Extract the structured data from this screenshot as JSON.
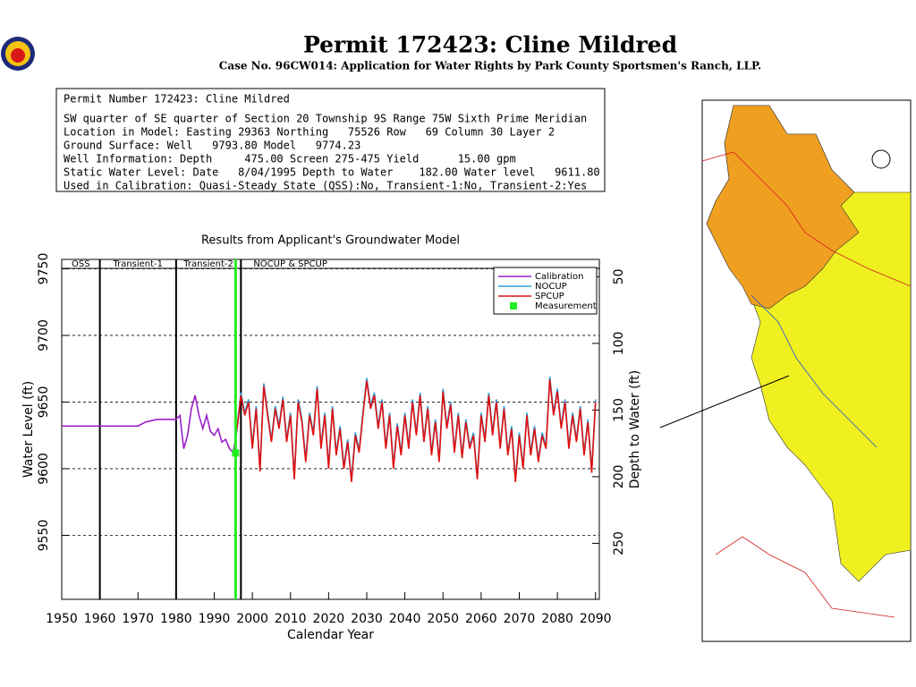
{
  "header": {
    "title": "Permit  172423:   Cline Mildred",
    "subtitle": "Case No. 96CW014: Application for Water Rights by Park County Sportsmen's Ranch, LLP."
  },
  "info": [
    "Permit Number 172423: Cline Mildred",
    "SW quarter of SE quarter of Section 20 Township 9S Range 75W Sixth Prime Meridian",
    "Location in Model: Easting 29363 Northing   75526 Row   69 Column 30 Layer 2",
    "Ground Surface: Well   9793.80 Model   9774.23",
    "Well Information: Depth     475.00 Screen 275-475 Yield      15.00 gpm",
    "Static Water Level: Date   8/04/1995 Depth to Water    182.00 Water level   9611.80",
    "Used in Calibration: Quasi-Steady State (QSS):No, Transient-1:No, Transient-2:Yes"
  ],
  "chart_data": {
    "type": "line",
    "title": "Results from Applicant's Groundwater Model",
    "xlabel": "Calendar Year",
    "ylabel": "Water Level (ft)",
    "y2label": "Depth to Water (ft)",
    "xlim": [
      1950,
      2091
    ],
    "xticks": [
      1950,
      1960,
      1970,
      1980,
      1990,
      2000,
      2010,
      2020,
      2030,
      2040,
      2050,
      2060,
      2070,
      2080,
      2090
    ],
    "ylim": [
      9502,
      9757
    ],
    "yticks": [
      9550,
      9600,
      9650,
      9700,
      9750
    ],
    "y2lim": [
      292,
      37
    ],
    "y2ticks": [
      50,
      100,
      150,
      200,
      250
    ],
    "grid": true,
    "legend": "upper right",
    "periods": [
      {
        "label": "OSS",
        "start": 1950
      },
      {
        "label": "Transient-1",
        "start": 1960
      },
      {
        "label": "Transient-2",
        "start": 1980
      },
      {
        "label": "NOCUP  &  SPCUP",
        "start": 1997
      }
    ],
    "series": [
      {
        "name": "Calibration",
        "color": "#9b1fc8",
        "x": [
          1950,
          1970,
          1972,
          1975,
          1980,
          1981,
          1982,
          1983,
          1984,
          1985,
          1986,
          1987,
          1988,
          1989,
          1990,
          1991,
          1992,
          1993,
          1994,
          1995,
          1996
        ],
        "values": [
          9632,
          9632,
          9635,
          9637,
          9637,
          9640,
          9615,
          9625,
          9645,
          9655,
          9640,
          9630,
          9640,
          9628,
          9625,
          9630,
          9620,
          9622,
          9615,
          9612,
          9630
        ]
      },
      {
        "name": "NOCUP",
        "color": "#2aa0e0",
        "x": [
          1996,
          1997,
          1998,
          1999,
          2000,
          2001,
          2002,
          2003,
          2004,
          2005,
          2006,
          2007,
          2008,
          2009,
          2010,
          2011,
          2012,
          2013,
          2014,
          2015,
          2016,
          2017,
          2018,
          2019,
          2020,
          2021,
          2022,
          2023,
          2024,
          2025,
          2026,
          2027,
          2028,
          2029,
          2030,
          2031,
          2032,
          2033,
          2034,
          2035,
          2036,
          2037,
          2038,
          2039,
          2040,
          2041,
          2042,
          2043,
          2044,
          2045,
          2046,
          2047,
          2048,
          2049,
          2050,
          2051,
          2052,
          2053,
          2054,
          2055,
          2056,
          2057,
          2058,
          2059,
          2060,
          2061,
          2062,
          2063,
          2064,
          2065,
          2066,
          2067,
          2068,
          2069,
          2070,
          2071,
          2072,
          2073,
          2074,
          2075,
          2076,
          2077,
          2078,
          2079,
          2080,
          2081,
          2082,
          2083,
          2084,
          2085,
          2086,
          2087,
          2088,
          2089,
          2090
        ],
        "values": [
          9632,
          9657,
          9642,
          9652,
          9617,
          9647,
          9600,
          9664,
          9642,
          9622,
          9647,
          9632,
          9654,
          9622,
          9642,
          9594,
          9652,
          9637,
          9607,
          9642,
          9627,
          9662,
          9617,
          9642,
          9602,
          9647,
          9612,
          9632,
          9602,
          9622,
          9592,
          9627,
          9614,
          9642,
          9668,
          9647,
          9657,
          9632,
          9652,
          9617,
          9642,
          9602,
          9634,
          9612,
          9642,
          9617,
          9652,
          9627,
          9657,
          9622,
          9647,
          9612,
          9637,
          9607,
          9660,
          9632,
          9650,
          9614,
          9642,
          9610,
          9637,
          9617,
          9627,
          9594,
          9642,
          9622,
          9657,
          9627,
          9652,
          9617,
          9647,
          9612,
          9632,
          9592,
          9627,
          9602,
          9642,
          9612,
          9632,
          9607,
          9627,
          9617,
          9669,
          9642,
          9660,
          9632,
          9652,
          9617,
          9642,
          9622,
          9647,
          9612,
          9637,
          9599,
          9652
        ]
      },
      {
        "name": "SPCUP",
        "color": "#e01010",
        "x": [
          1996,
          1997,
          1998,
          1999,
          2000,
          2001,
          2002,
          2003,
          2004,
          2005,
          2006,
          2007,
          2008,
          2009,
          2010,
          2011,
          2012,
          2013,
          2014,
          2015,
          2016,
          2017,
          2018,
          2019,
          2020,
          2021,
          2022,
          2023,
          2024,
          2025,
          2026,
          2027,
          2028,
          2029,
          2030,
          2031,
          2032,
          2033,
          2034,
          2035,
          2036,
          2037,
          2038,
          2039,
          2040,
          2041,
          2042,
          2043,
          2044,
          2045,
          2046,
          2047,
          2048,
          2049,
          2050,
          2051,
          2052,
          2053,
          2054,
          2055,
          2056,
          2057,
          2058,
          2059,
          2060,
          2061,
          2062,
          2063,
          2064,
          2065,
          2066,
          2067,
          2068,
          2069,
          2070,
          2071,
          2072,
          2073,
          2074,
          2075,
          2076,
          2077,
          2078,
          2079,
          2080,
          2081,
          2082,
          2083,
          2084,
          2085,
          2086,
          2087,
          2088,
          2089,
          2090
        ],
        "values": [
          9630,
          9655,
          9640,
          9650,
          9615,
          9645,
          9598,
          9662,
          9640,
          9620,
          9645,
          9630,
          9652,
          9620,
          9640,
          9592,
          9650,
          9635,
          9605,
          9640,
          9625,
          9660,
          9615,
          9640,
          9600,
          9645,
          9610,
          9630,
          9600,
          9620,
          9590,
          9625,
          9612,
          9640,
          9666,
          9645,
          9655,
          9630,
          9650,
          9615,
          9640,
          9600,
          9632,
          9610,
          9640,
          9615,
          9650,
          9625,
          9655,
          9620,
          9645,
          9610,
          9635,
          9605,
          9658,
          9630,
          9648,
          9612,
          9640,
          9608,
          9635,
          9615,
          9625,
          9592,
          9640,
          9620,
          9655,
          9625,
          9650,
          9615,
          9645,
          9610,
          9630,
          9590,
          9625,
          9600,
          9640,
          9610,
          9630,
          9605,
          9625,
          9615,
          9667,
          9640,
          9658,
          9630,
          9650,
          9615,
          9640,
          9620,
          9645,
          9610,
          9635,
          9597,
          9650
        ]
      },
      {
        "name": "Measurement",
        "color": "#22ee22",
        "marker": true,
        "x": [
          1995.6
        ],
        "values": [
          9611.8
        ]
      }
    ]
  }
}
